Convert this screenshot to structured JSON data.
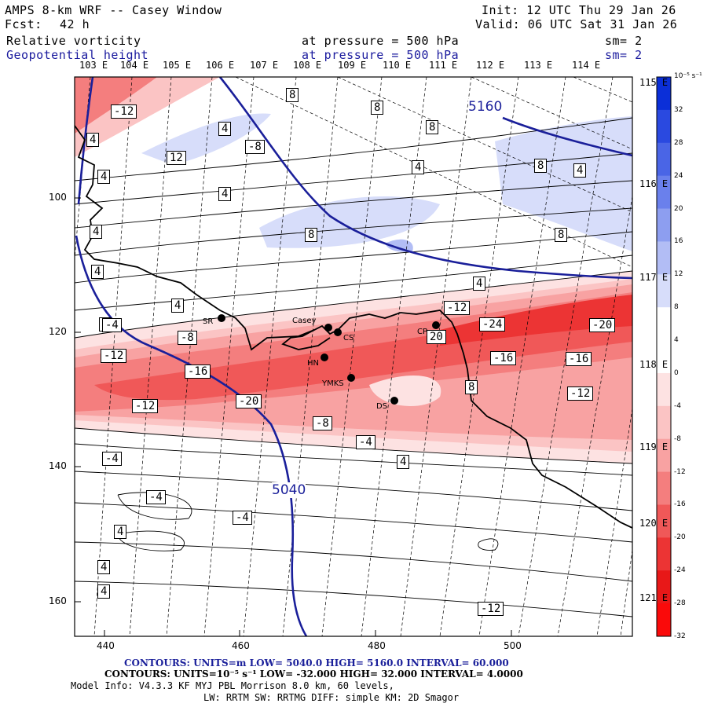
{
  "header": {
    "model": "AMPS 8-km WRF -- Casey Window",
    "init": "Init: 12 UTC Thu 29 Jan 26",
    "fcst_label": "Fcst:",
    "fcst_value": "42 h",
    "valid": "Valid: 06 UTC Sat 31 Jan 26",
    "field1": "Relative vorticity",
    "field1_level": "at pressure =  500 hPa",
    "field1_sm": "sm= 2",
    "field2": "Geopotential height",
    "field2_level": "at pressure =  500 hPa",
    "field2_sm": "sm= 2"
  },
  "lon_labels": [
    "103 E",
    "104 E",
    "105 E",
    "106 E",
    "107 E",
    "108 E",
    "109 E",
    "110 E",
    "111 E",
    "112 E",
    "113 E",
    "114 E"
  ],
  "lat_labels_right": [
    "115 E",
    "116 E",
    "117 E",
    "118 E",
    "119 E",
    "120 E",
    "121 E"
  ],
  "x_ticks": [
    "440",
    "460",
    "480",
    "500"
  ],
  "y_ticks": [
    "100",
    "120",
    "140",
    "160"
  ],
  "colorbar": {
    "unit": "10⁻⁵ s⁻¹",
    "labels": [
      "32",
      "28",
      "24",
      "20",
      "16",
      "12",
      "8",
      "4",
      "0",
      "-4",
      "-8",
      "-12",
      "-16",
      "-20",
      "-24",
      "-28",
      "-32"
    ],
    "colors": [
      "#0b2fd8",
      "#2a49e0",
      "#4a65e6",
      "#6a80ec",
      "#8d9ef0",
      "#b2bdf5",
      "#d7ddfa",
      "#ffffff",
      "#ffffff",
      "#fde2e2",
      "#fbc4c4",
      "#f8a2a2",
      "#f47e7e",
      "#f05858",
      "#ec3434",
      "#e81818",
      "#fa0a0a"
    ]
  },
  "contour_labels": {
    "height": [
      "5160",
      "5040"
    ],
    "vorticity": [
      "-12",
      "8",
      "8",
      "4",
      "4",
      "-8",
      "8",
      "12",
      "4",
      "4",
      "4",
      "8",
      "4",
      "4",
      "4",
      "8",
      "8",
      "4",
      "4",
      "4",
      "-12",
      "-4",
      "-8",
      "-24",
      "-20",
      "20",
      "-16",
      "-12",
      "-16",
      "8",
      "-12",
      "-16",
      "-20",
      "-12",
      "-8",
      "-4",
      "4",
      "-4",
      "-4",
      "-4",
      "4",
      "4",
      "4",
      "-12"
    ]
  },
  "stations": [
    "SR",
    "Casey",
    "CS",
    "HN",
    "CP",
    "YMKS",
    "DS"
  ],
  "footer": {
    "contours_height": "CONTOURS:  UNITS=m  LOW=  5040.0      HIGH=  5160.0      INTERVAL=   60.000",
    "contours_vort": "CONTOURS:  UNITS=10⁻⁵ s⁻¹  LOW= -32.000      HIGH=  32.000      INTERVAL=   4.0000",
    "model_info": "Model Info: V4.3.3   KF      MYJ PBL  Morrison         8.0 km,  60 levels,",
    "model_info2": "LW: RRTM SW: RRTMG   DIFF: simple KM: 2D Smagor"
  }
}
